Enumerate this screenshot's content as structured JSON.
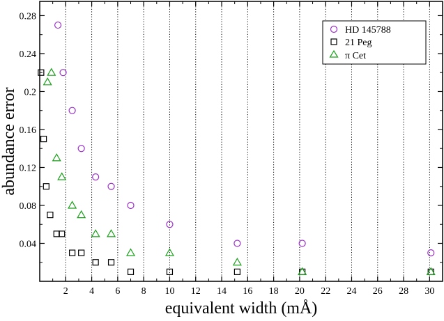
{
  "chart_data": {
    "type": "scatter",
    "xlabel": "equivalent width (mÅ)",
    "ylabel": "abundance error",
    "xlim": [
      0,
      31
    ],
    "ylim": [
      0,
      0.295
    ],
    "x_ticks": [
      2,
      4,
      6,
      8,
      10,
      12,
      14,
      16,
      18,
      20,
      22,
      24,
      26,
      28,
      30
    ],
    "y_ticks": [
      0.04,
      0.08,
      0.12,
      0.16,
      0.2,
      0.24,
      0.28
    ],
    "x_tick_labels": [
      "2",
      "4",
      "6",
      "8",
      "10",
      "12",
      "14",
      "16",
      "18",
      "20",
      "22",
      "24",
      "26",
      "28",
      "30"
    ],
    "y_tick_labels": [
      "0.04",
      "0.08",
      "0.12",
      "0.16",
      "0.2",
      "0.24",
      "0.28"
    ],
    "grid": "vertical dotted lines at x ticks",
    "legend_position": "top-right",
    "series": [
      {
        "name": "HD 145788",
        "marker": "circle",
        "color": "#9a30c8",
        "points": [
          [
            1.4,
            0.27
          ],
          [
            1.8,
            0.22
          ],
          [
            2.5,
            0.18
          ],
          [
            3.2,
            0.14
          ],
          [
            4.3,
            0.11
          ],
          [
            5.5,
            0.1
          ],
          [
            7.0,
            0.08
          ],
          [
            10.0,
            0.06
          ],
          [
            15.2,
            0.04
          ],
          [
            20.2,
            0.04
          ],
          [
            30.1,
            0.03
          ]
        ]
      },
      {
        "name": "21 Peg",
        "marker": "square",
        "color": "#000000",
        "points": [
          [
            0.1,
            0.22
          ],
          [
            0.3,
            0.15
          ],
          [
            0.5,
            0.1
          ],
          [
            0.8,
            0.07
          ],
          [
            1.3,
            0.05
          ],
          [
            1.7,
            0.05
          ],
          [
            2.5,
            0.03
          ],
          [
            3.2,
            0.03
          ],
          [
            4.3,
            0.02
          ],
          [
            5.5,
            0.02
          ],
          [
            7.0,
            0.01
          ],
          [
            10.0,
            0.01
          ],
          [
            15.2,
            0.01
          ],
          [
            20.2,
            0.01
          ],
          [
            30.1,
            0.01
          ]
        ]
      },
      {
        "name": "π Cet",
        "marker": "triangle",
        "color": "#1aa01a",
        "points": [
          [
            0.6,
            0.21
          ],
          [
            0.9,
            0.22
          ],
          [
            1.3,
            0.13
          ],
          [
            1.7,
            0.11
          ],
          [
            2.5,
            0.08
          ],
          [
            3.2,
            0.07
          ],
          [
            4.3,
            0.05
          ],
          [
            5.5,
            0.05
          ],
          [
            7.0,
            0.03
          ],
          [
            10.0,
            0.03
          ],
          [
            15.2,
            0.02
          ],
          [
            20.2,
            0.01
          ],
          [
            30.1,
            0.01
          ]
        ]
      }
    ]
  }
}
